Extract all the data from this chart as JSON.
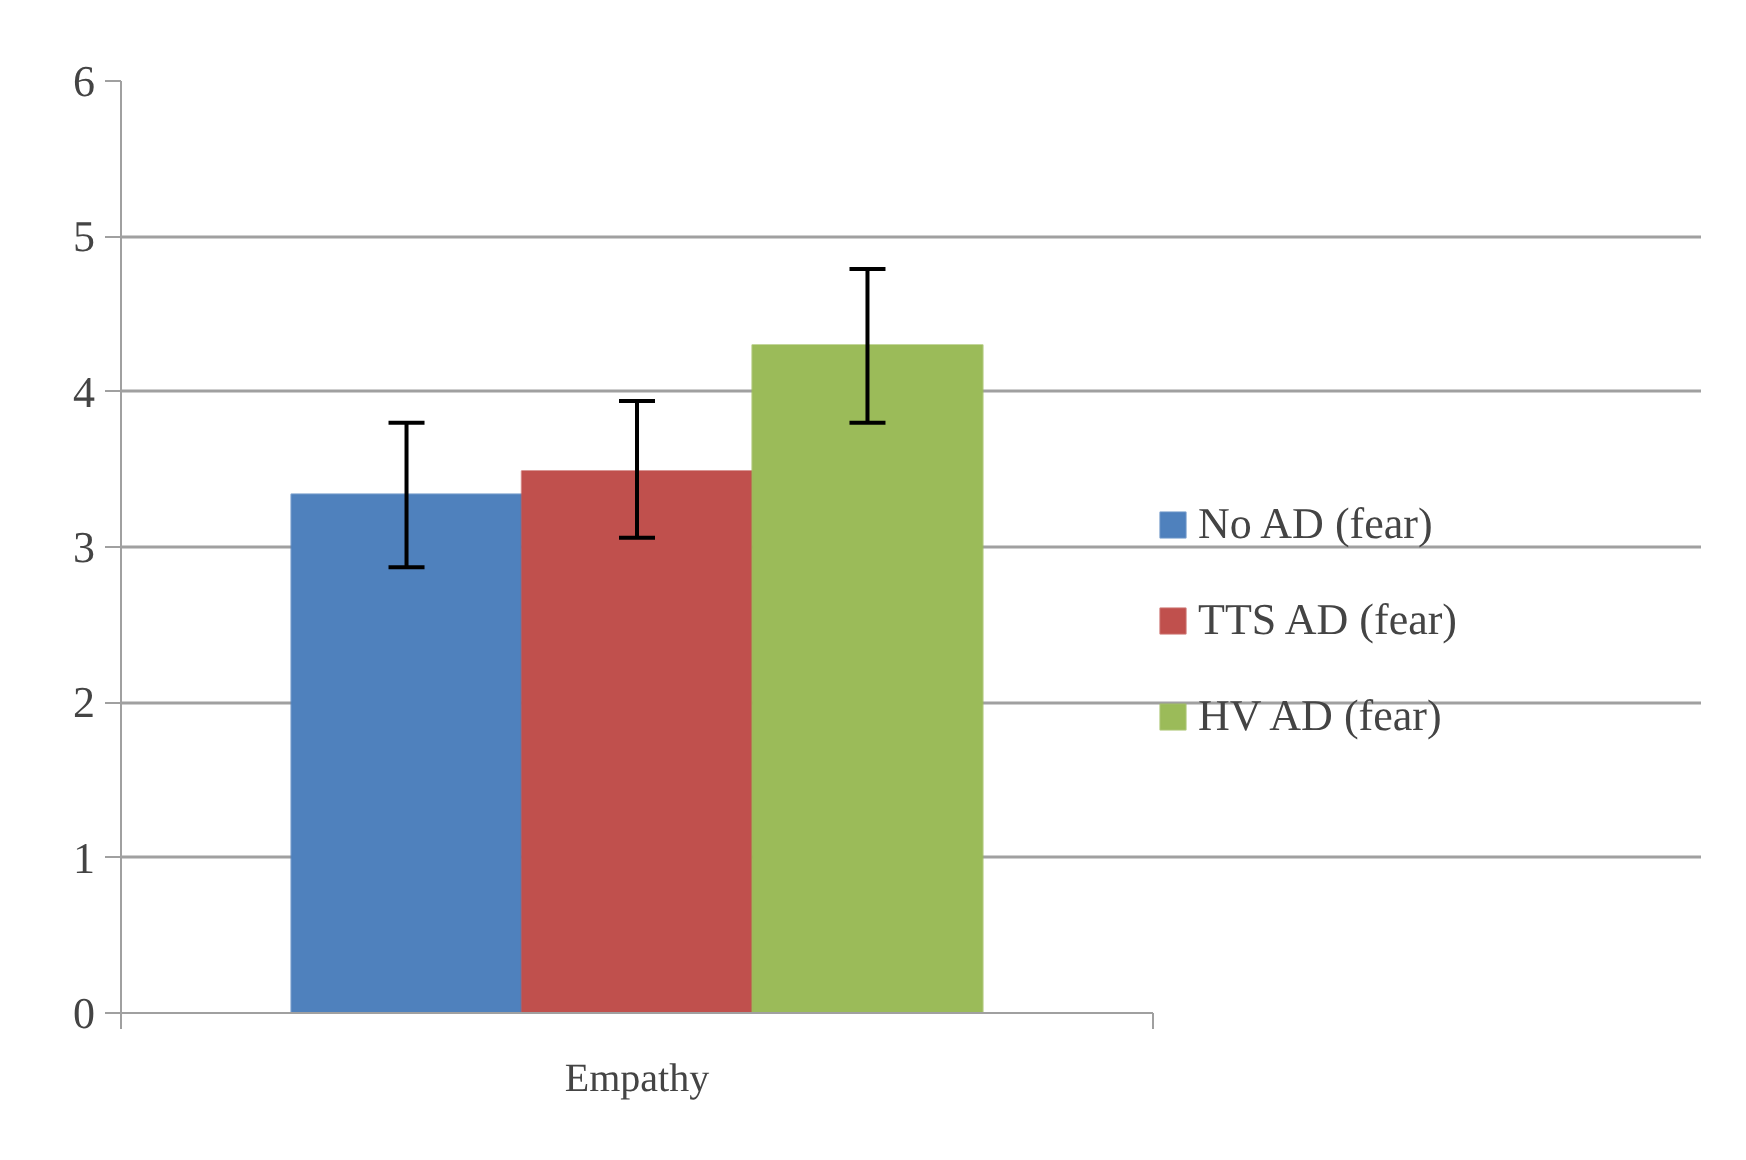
{
  "chart_data": {
    "type": "bar",
    "categories": [
      "Empathy"
    ],
    "series": [
      {
        "name": "No AD (fear)",
        "color": "#4f81bd",
        "values": [
          3.34
        ],
        "errors": [
          [
            2.87,
            3.8
          ]
        ]
      },
      {
        "name": "TTS AD (fear)",
        "color": "#c0504d",
        "values": [
          3.49
        ],
        "errors": [
          [
            3.06,
            3.94
          ]
        ]
      },
      {
        "name": "HV AD (fear)",
        "color": "#9bbb59",
        "values": [
          4.3
        ],
        "errors": [
          [
            3.8,
            4.79
          ]
        ]
      }
    ],
    "ylim": [
      0,
      6
    ],
    "yticks": [
      0,
      1,
      2,
      3,
      4,
      5,
      6
    ],
    "grid": "y",
    "legend": "right"
  }
}
